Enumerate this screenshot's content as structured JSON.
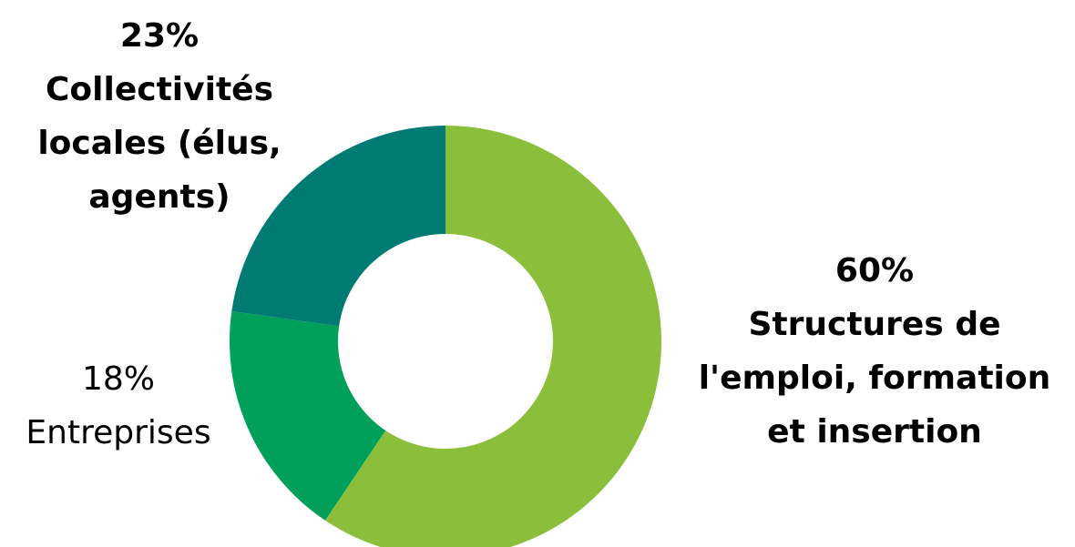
{
  "chart_data": {
    "type": "pie",
    "donut": true,
    "title": "",
    "slices": [
      {
        "value": 60,
        "percent_label": "60%",
        "label_lines": [
          "Structures de",
          "l'emploi, formation",
          "et insertion"
        ],
        "color": "#8BBF3B"
      },
      {
        "value": 18,
        "percent_label": "18%",
        "label_lines": [
          "Entreprises"
        ],
        "color": "#00A05A"
      },
      {
        "value": 23,
        "percent_label": "23%",
        "label_lines": [
          "Collectivités",
          "locales (élus,",
          "agents)"
        ],
        "color": "#007B73"
      }
    ]
  }
}
